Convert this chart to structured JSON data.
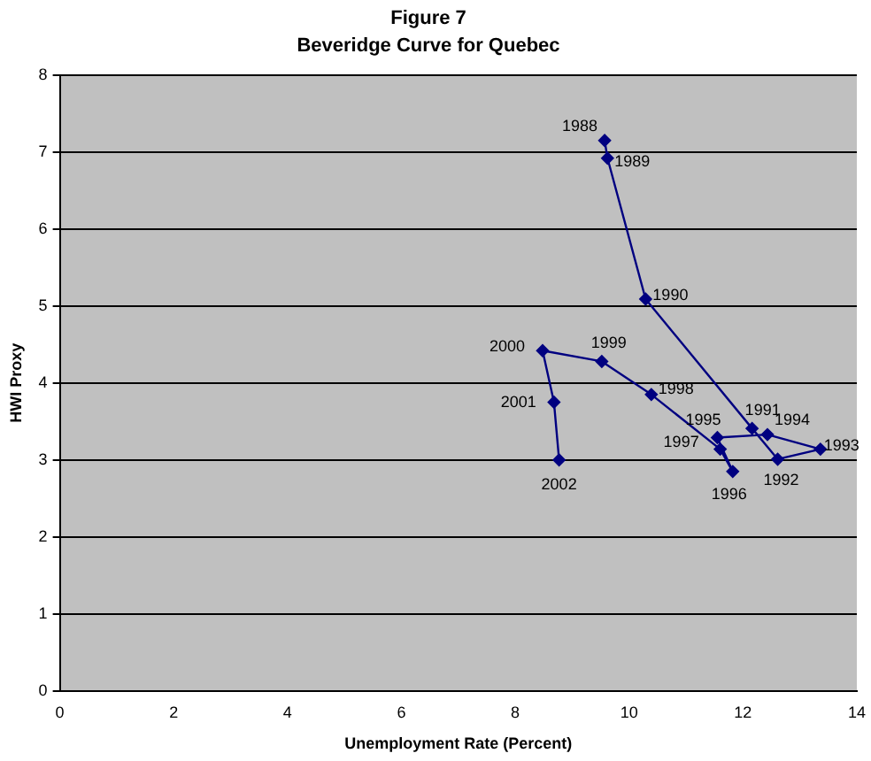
{
  "chart_data": {
    "type": "line",
    "title": "Figure 7",
    "subtitle": "Beveridge Curve for Quebec",
    "xlabel": "Unemployment Rate (Percent)",
    "ylabel": "HWI Proxy",
    "xlim": [
      0,
      14
    ],
    "xticks": [
      0,
      2,
      4,
      6,
      8,
      10,
      12,
      14
    ],
    "ylim": [
      0,
      8
    ],
    "yticks": [
      0,
      1,
      2,
      3,
      4,
      5,
      6,
      7,
      8
    ],
    "grid": "y",
    "legend": false,
    "marker": "diamond",
    "line_style": "solid",
    "series": [
      {
        "color": "#000080",
        "x": [
          9.57,
          9.62,
          10.29,
          12.16,
          12.61,
          13.36,
          12.43,
          11.55,
          11.82,
          11.6,
          10.39,
          9.52,
          8.48,
          8.68,
          8.77
        ],
        "values": [
          7.15,
          6.92,
          5.09,
          3.41,
          3.01,
          3.14,
          3.33,
          3.29,
          2.85,
          3.14,
          3.85,
          4.28,
          4.42,
          3.75,
          3.0
        ]
      }
    ],
    "annotations": [
      {
        "text": "1988",
        "x": 9.57,
        "y": 7.15
      },
      {
        "text": "1989",
        "x": 9.62,
        "y": 6.92
      },
      {
        "text": "1990",
        "x": 10.29,
        "y": 5.09
      },
      {
        "text": "1991",
        "x": 12.16,
        "y": 3.41
      },
      {
        "text": "1992",
        "x": 12.61,
        "y": 3.01
      },
      {
        "text": "1993",
        "x": 13.36,
        "y": 3.14
      },
      {
        "text": "1994",
        "x": 12.43,
        "y": 3.33
      },
      {
        "text": "1995",
        "x": 11.55,
        "y": 3.29
      },
      {
        "text": "1996",
        "x": 11.82,
        "y": 2.85
      },
      {
        "text": "1997",
        "x": 11.6,
        "y": 3.14
      },
      {
        "text": "1998",
        "x": 10.39,
        "y": 3.85
      },
      {
        "text": "1999",
        "x": 9.52,
        "y": 4.28
      },
      {
        "text": "2000",
        "x": 8.48,
        "y": 4.42
      },
      {
        "text": "2001",
        "x": 8.68,
        "y": 3.75
      },
      {
        "text": "2002",
        "x": 8.77,
        "y": 3.0
      }
    ]
  }
}
